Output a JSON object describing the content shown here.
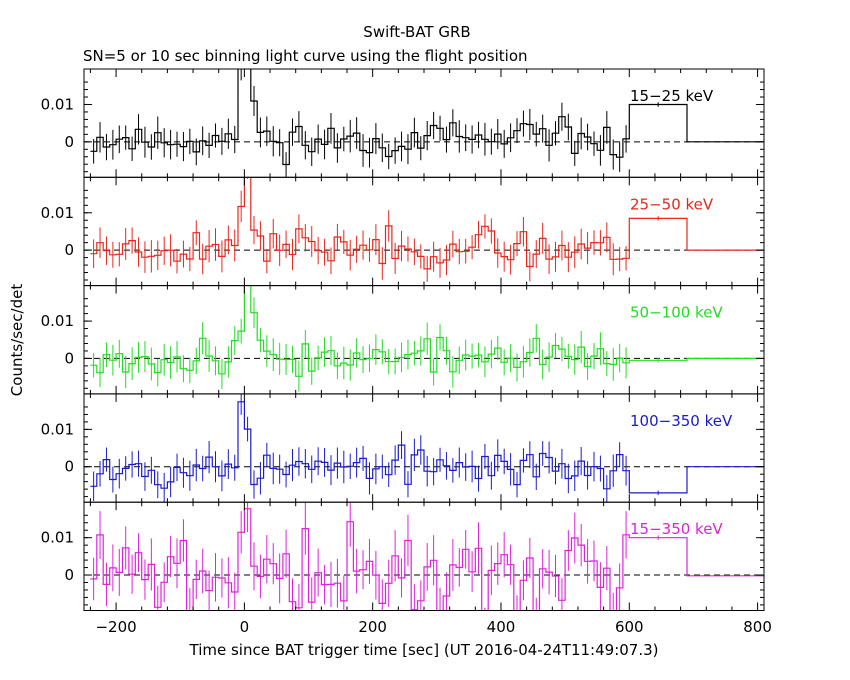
{
  "chart_data": {
    "type": "line",
    "title": "Swift-BAT GRB",
    "subtitle": "SN=5 or 10 sec binning light curve using the flight position",
    "xlabel": "Time since BAT trigger time [sec] (UT 2016-04-24T11:49:07.3)",
    "ylabel": "Counts/sec/det",
    "xlim": [
      -250,
      810
    ],
    "ylim": [
      -0.0095,
      0.0195
    ],
    "x_ticks": [
      -200,
      0,
      200,
      400,
      600,
      800
    ],
    "x_tick_labels": [
      "−200",
      "0",
      "200",
      "400",
      "600",
      "800"
    ],
    "y_ticks": [
      0,
      0.01
    ],
    "y_tick_labels": [
      "0",
      "0.01"
    ],
    "bin_width_sec": 10,
    "trigger_time_sec": 0,
    "long_bin": {
      "start": 600,
      "end": 690
    },
    "panels": [
      {
        "name": "15-25 keV",
        "label": "15−25 keV",
        "color": "#000000",
        "seed": 11,
        "spike": [
          0,
          0.02,
          0.03,
          0.012,
          0.004
        ],
        "pre_bias": 0.0005,
        "long_bin_value": 0.01,
        "tail_value": 0.0
      },
      {
        "name": "25-50 keV",
        "label": "25−50 keV",
        "color": "#e8261b",
        "seed": 23,
        "spike": [
          0.004,
          0.011,
          0.024,
          0.008,
          0.002
        ],
        "pre_bias": 0.0006,
        "long_bin_value": 0.0085,
        "tail_value": 0.0
      },
      {
        "name": "50-100 keV",
        "label": "50−100 keV",
        "color": "#22dd22",
        "seed": 37,
        "spike": [
          0.003,
          0.012,
          0.02,
          0.009,
          0.002
        ],
        "pre_bias": 0.0004,
        "long_bin_value": -0.0005,
        "tail_value": 0.0
      },
      {
        "name": "100-350 keV",
        "label": "100−350 keV",
        "color": "#1a1acc",
        "seed": 53,
        "spike": [
          0.0,
          0.019,
          0.012,
          -0.002,
          0.0
        ],
        "pre_bias": -0.0002,
        "long_bin_value": -0.007,
        "tail_value": 0.0
      },
      {
        "name": "15-350 keV",
        "label": "15−350 keV",
        "color": "#dd22dd",
        "seed": 71,
        "spike": [
          0.003,
          0.02,
          0.008,
          0.003,
          0.001
        ],
        "pre_bias": 0.0,
        "long_bin_value": 0.01,
        "tail_value": -0.0002,
        "noise_scale": 2.6
      }
    ]
  }
}
